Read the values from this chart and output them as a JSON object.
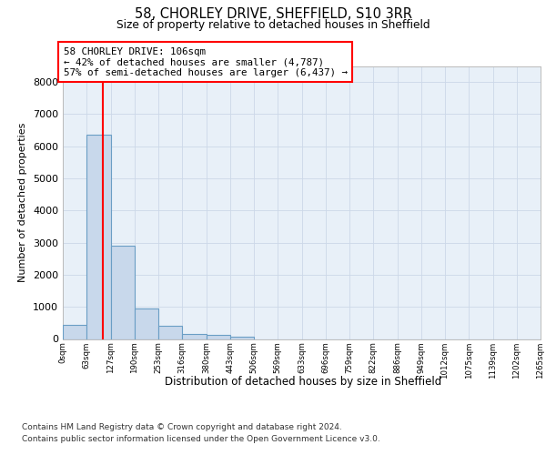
{
  "title1": "58, CHORLEY DRIVE, SHEFFIELD, S10 3RR",
  "title2": "Size of property relative to detached houses in Sheffield",
  "xlabel": "Distribution of detached houses by size in Sheffield",
  "ylabel": "Number of detached properties",
  "bin_labels": [
    "0sqm",
    "63sqm",
    "127sqm",
    "190sqm",
    "253sqm",
    "316sqm",
    "380sqm",
    "443sqm",
    "506sqm",
    "569sqm",
    "633sqm",
    "696sqm",
    "759sqm",
    "822sqm",
    "886sqm",
    "949sqm",
    "1012sqm",
    "1075sqm",
    "1139sqm",
    "1202sqm",
    "1265sqm"
  ],
  "bar_values": [
    430,
    6350,
    2900,
    950,
    420,
    170,
    130,
    80,
    0,
    0,
    0,
    0,
    0,
    0,
    0,
    0,
    0,
    0,
    0,
    0
  ],
  "bar_color": "#c8d8eb",
  "bar_edge_color": "#6a9ec5",
  "grid_color": "#ccd8e8",
  "background_color": "#e8f0f8",
  "vline_x": 106,
  "vline_color": "red",
  "annotation_line1": "58 CHORLEY DRIVE: 106sqm",
  "annotation_line2": "← 42% of detached houses are smaller (4,787)",
  "annotation_line3": "57% of semi-detached houses are larger (6,437) →",
  "annotation_box_color": "white",
  "annotation_box_edge": "red",
  "ylim": [
    0,
    8500
  ],
  "yticks": [
    0,
    1000,
    2000,
    3000,
    4000,
    5000,
    6000,
    7000,
    8000
  ],
  "footer1": "Contains HM Land Registry data © Crown copyright and database right 2024.",
  "footer2": "Contains public sector information licensed under the Open Government Licence v3.0.",
  "bin_width": 63,
  "n_bins": 20
}
